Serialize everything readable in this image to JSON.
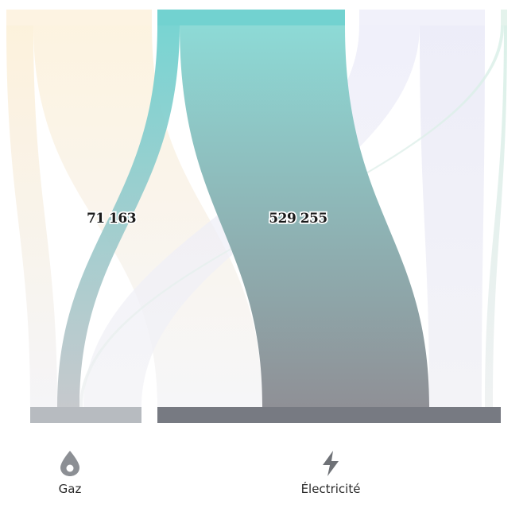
{
  "categories": [
    {
      "id": "gaz",
      "label": "Gaz",
      "icon": "drop-icon",
      "color": "#b7bbc0"
    },
    {
      "id": "electricite",
      "label": "Électricité",
      "icon": "lightning-icon",
      "color": "#777a82"
    }
  ],
  "flows": [
    {
      "target": "gaz",
      "value": "71 163",
      "source_color": "#72d2d0",
      "target_color": "#c3c6ca"
    },
    {
      "target": "electricite",
      "value": "529 255",
      "source_color": "#8ddad6",
      "target_color": "#8f9096"
    }
  ],
  "colors": {
    "teal": "#72d2d0",
    "gaz_bar": "#b7bbc0",
    "electricite_bar": "#777a82",
    "faint_yellow": "#fbf1dc",
    "faint_lavender": "#ebebf7"
  }
}
